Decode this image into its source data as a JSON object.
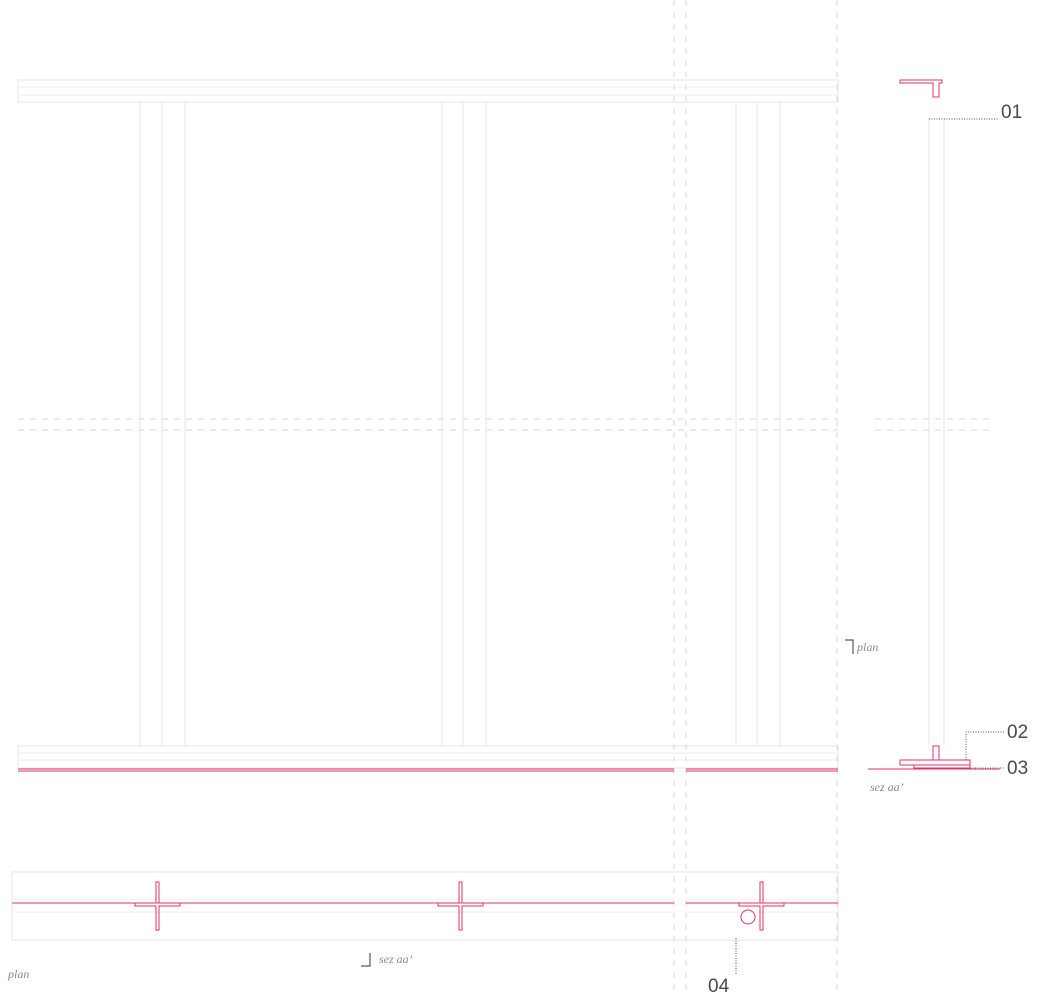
{
  "callouts": {
    "c01": "01",
    "c02": "02",
    "c03": "03",
    "c04": "04"
  },
  "captions": {
    "plan_marker": "plan",
    "section_label": "sez aa’",
    "section_marker": "sez aa’",
    "plan_label": "plan"
  },
  "colors": {
    "structure": "#e0306a",
    "outline": "#e6e6e6",
    "axis": "#d9d9d9",
    "text": "#4a4a4a"
  }
}
